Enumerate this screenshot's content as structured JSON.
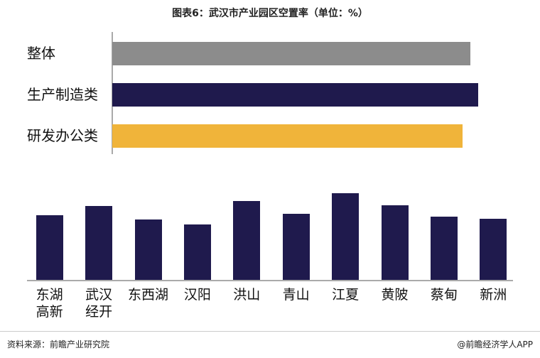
{
  "title": "图表6：武汉市产业园区空置率（单位：%）",
  "source": "资料来源：前瞻产业研究院",
  "credit": "@前瞻经济学人APP",
  "chart_data": [
    {
      "type": "hbar",
      "categories": [
        "整体",
        "生产制造类",
        "研发办公类"
      ],
      "values": [
        23,
        23.5,
        22.5
      ],
      "colors": [
        "#8c8c8c",
        "#1f1a4d",
        "#f0b43a"
      ],
      "xlim": [
        0,
        27
      ]
    },
    {
      "type": "bar",
      "categories": [
        "东湖\n高新",
        "武汉\n经开",
        "东西湖",
        "汉阳",
        "洪山",
        "青山",
        "江夏",
        "黄陂",
        "蔡甸",
        "新洲"
      ],
      "values": [
        22.8,
        26,
        21.3,
        19.5,
        27.8,
        23.3,
        30.5,
        26.3,
        22.3,
        21.5
      ],
      "color": "#1f1a4d",
      "ylim": [
        0,
        35
      ]
    }
  ]
}
